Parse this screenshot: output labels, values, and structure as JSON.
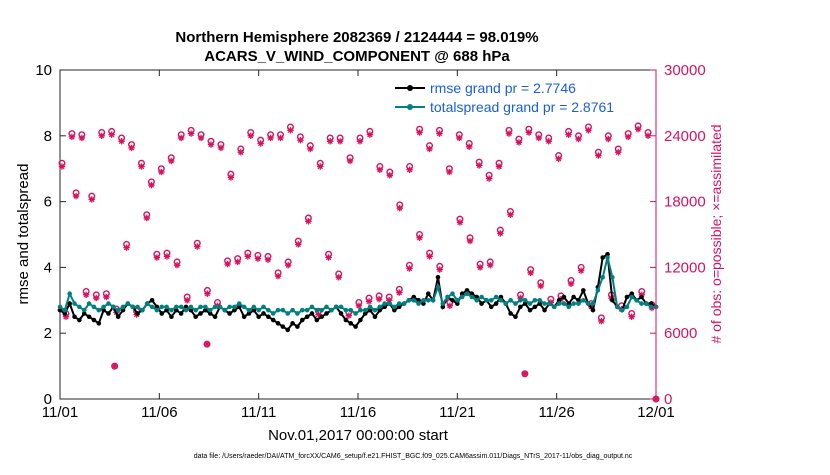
{
  "colors": {
    "rmse": "#000000",
    "spread": "#008080",
    "obs": "#d6135f",
    "legend_text": "#1a5fd6",
    "axis": "#262626"
  },
  "chart_data": {
    "type": "line",
    "title_line1": "Northern Hemisphere 2082369 / 2124444 = 98.019%",
    "title_line2": "ACARS_V_WIND_COMPONENT @ 688 hPa",
    "xlabel": "Nov.01,2017 00:00:00 start",
    "ylabel_left": "rmse and totalspread",
    "ylabel_right": "# of obs: o=possible; ×=assimilated",
    "footnote": "data file: /Users/raeder/DAI/ATM_forcXX/CAM6_setup/f.e21.FHIST_BGC.f09_025.CAM6assim.011/Diags_NTrS_2017-11/obs_diag_output.nc",
    "xlim": [
      0,
      30
    ],
    "ylim_left": [
      0,
      10
    ],
    "ylim_right": [
      0,
      30000
    ],
    "x_ticks": [
      0,
      5,
      10,
      15,
      20,
      25,
      30
    ],
    "x_tick_labels": [
      "11/01",
      "11/06",
      "11/11",
      "11/16",
      "11/21",
      "11/26",
      "12/01"
    ],
    "y_left_ticks": [
      "0",
      "2",
      "4",
      "6",
      "8",
      "10"
    ],
    "y_right_ticks": [
      "0",
      "6000",
      "12000",
      "18000",
      "24000",
      "30000"
    ],
    "legend": [
      {
        "name": "rmse grand pr = 2.7746"
      },
      {
        "name": "totalspread grand pr = 2.8761"
      }
    ],
    "series": [
      {
        "name": "rmse",
        "values": [
          2.7,
          2.6,
          2.9,
          2.5,
          2.4,
          2.6,
          2.5,
          2.4,
          2.3,
          2.7,
          2.6,
          2.8,
          2.5,
          2.7,
          2.9,
          2.8,
          2.6,
          2.7,
          2.9,
          3.0,
          2.8,
          2.6,
          2.7,
          2.5,
          2.7,
          2.6,
          2.8,
          2.7,
          2.5,
          2.6,
          2.7,
          2.6,
          2.5,
          2.8,
          2.7,
          2.6,
          2.7,
          2.8,
          2.5,
          2.6,
          2.7,
          2.5,
          2.6,
          2.5,
          2.4,
          2.3,
          2.2,
          2.1,
          2.3,
          2.2,
          2.4,
          2.5,
          2.6,
          2.4,
          2.5,
          2.6,
          2.7,
          2.8,
          2.6,
          2.4,
          2.3,
          2.2,
          2.4,
          2.6,
          2.7,
          2.5,
          2.7,
          2.8,
          2.9,
          2.7,
          2.8,
          2.9,
          3.0,
          3.1,
          3.0,
          2.9,
          3.2,
          3.0,
          3.7,
          2.8,
          3.1,
          3.0,
          2.9,
          3.2,
          3.3,
          3.2,
          3.1,
          2.9,
          3.0,
          2.8,
          2.9,
          3.1,
          2.9,
          2.6,
          2.5,
          2.8,
          2.9,
          2.7,
          2.8,
          2.9,
          2.7,
          2.9,
          2.8,
          3.0,
          3.1,
          2.9,
          3.1,
          3.0,
          3.3,
          2.9,
          2.7,
          3.4,
          4.3,
          4.4,
          3.0,
          2.8,
          2.7,
          3.1,
          3.2,
          3.0,
          3.1,
          2.9,
          2.9,
          2.8
        ]
      },
      {
        "name": "totalspread",
        "values": [
          2.8,
          2.7,
          3.2,
          2.9,
          2.8,
          2.7,
          2.9,
          2.8,
          2.7,
          2.8,
          2.9,
          2.8,
          2.7,
          2.8,
          2.9,
          2.8,
          2.8,
          2.7,
          2.9,
          2.8,
          2.7,
          2.8,
          2.8,
          2.7,
          2.8,
          2.8,
          2.7,
          2.8,
          2.7,
          2.8,
          2.8,
          2.7,
          2.8,
          2.8,
          2.7,
          2.8,
          2.8,
          2.9,
          2.8,
          2.7,
          2.8,
          2.7,
          2.8,
          2.7,
          2.6,
          2.7,
          2.7,
          2.6,
          2.7,
          2.6,
          2.7,
          2.7,
          2.8,
          2.7,
          2.7,
          2.8,
          2.7,
          2.8,
          2.8,
          2.7,
          2.7,
          2.6,
          2.7,
          2.7,
          2.8,
          2.7,
          2.8,
          2.9,
          2.9,
          2.8,
          2.9,
          2.9,
          3.0,
          3.0,
          2.9,
          3.0,
          3.0,
          3.0,
          3.4,
          2.9,
          3.1,
          3.2,
          3.0,
          3.1,
          3.2,
          3.1,
          3.0,
          3.1,
          3.0,
          3.0,
          3.1,
          3.0,
          2.9,
          3.0,
          2.9,
          3.0,
          3.0,
          2.9,
          3.0,
          3.0,
          2.9,
          2.9,
          2.8,
          2.9,
          2.9,
          2.8,
          2.9,
          2.9,
          3.0,
          2.9,
          2.9,
          3.3,
          3.7,
          4.3,
          3.7,
          2.8,
          2.7,
          2.8,
          3.1,
          3.0,
          2.9,
          2.9,
          2.8,
          2.8
        ]
      }
    ],
    "obs_possible": [
      21500,
      24200,
      24100,
      18500,
      24300,
      24400,
      23800,
      23200,
      21500,
      19800,
      21000,
      22000,
      24100,
      24500,
      24100,
      23500,
      23200,
      20500,
      22800,
      24300,
      23600,
      24100,
      24100,
      24800,
      23900,
      23100,
      21500,
      23800,
      23800,
      22000,
      23800,
      24400,
      21200,
      20700,
      17700,
      21200,
      24600,
      23100,
      24500,
      21000,
      24100,
      23300,
      21600,
      20400,
      21500,
      24500,
      23700,
      24600,
      24100,
      23800,
      22200,
      24400,
      24000,
      24800,
      22500,
      24000,
      22800,
      24200,
      24900,
      24300
    ],
    "obs_assimilated": [
      21200,
      23900,
      23800,
      18200,
      24000,
      24100,
      23500,
      22900,
      21200,
      19500,
      20700,
      21700,
      23800,
      24200,
      23800,
      23200,
      22900,
      20200,
      22500,
      24000,
      23300,
      23800,
      23800,
      24500,
      23600,
      22800,
      21200,
      23500,
      23500,
      21700,
      23500,
      24100,
      20900,
      20400,
      17400,
      20900,
      24300,
      22800,
      24200,
      20700,
      23800,
      23000,
      21300,
      20100,
      21200,
      24200,
      23400,
      24300,
      23800,
      23500,
      21900,
      24100,
      23700,
      24500,
      22200,
      23700,
      22500,
      23900,
      24600,
      24000
    ],
    "obs_possible_low": [
      7800,
      18800,
      9800,
      9500,
      9600,
      8200,
      14100,
      8000,
      16800,
      13200,
      13300,
      12500,
      9300,
      14200,
      9900,
      8800,
      12600,
      12800,
      13300,
      13100,
      13000,
      11500,
      12500,
      14400,
      16500,
      8000,
      13200,
      11400,
      7900,
      8800,
      9200,
      9400,
      9300,
      10000,
      12200,
      15000,
      13300,
      12100,
      8800,
      16400,
      14700,
      12300,
      12500,
      15400,
      17100,
      9500,
      11800,
      10600,
      9100,
      9400,
      10800,
      12000,
      8700,
      7400,
      9500,
      8500,
      7800,
      9800,
      8600
    ],
    "obs_assimilated_low": [
      7500,
      18500,
      9500,
      9200,
      9300,
      7900,
      13800,
      7700,
      16500,
      12900,
      13000,
      12200,
      9000,
      13900,
      9600,
      8500,
      12300,
      12500,
      13000,
      12800,
      12700,
      11200,
      12200,
      14100,
      16200,
      7700,
      12900,
      11100,
      7600,
      8500,
      8900,
      9100,
      9000,
      9700,
      11900,
      14700,
      13000,
      11800,
      8500,
      16100,
      14400,
      12000,
      12200,
      15100,
      16800,
      9200,
      11500,
      10300,
      8800,
      9100,
      10500,
      11700,
      8400,
      7100,
      9200,
      8200,
      7500,
      9500,
      8300
    ],
    "obs_outliers": [
      {
        "x": 2.75,
        "y": 3000
      },
      {
        "x": 7.4,
        "y": 5000
      },
      {
        "x": 23.4,
        "y": 2300
      },
      {
        "x": 30.0,
        "y": 0
      }
    ]
  }
}
